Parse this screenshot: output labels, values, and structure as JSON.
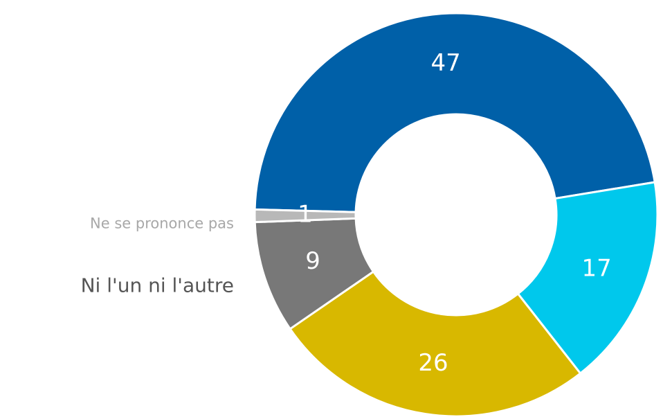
{
  "chart_data": {
    "type": "donut",
    "categories": [
      null,
      null,
      null,
      "Ni l'un ni l'autre",
      "Ne se prononce pas"
    ],
    "values": [
      47,
      17,
      26,
      9,
      1
    ],
    "colors": [
      "#0060a8",
      "#00c8ec",
      "#d8b800",
      "#787878",
      "#b8b8b8"
    ]
  }
}
